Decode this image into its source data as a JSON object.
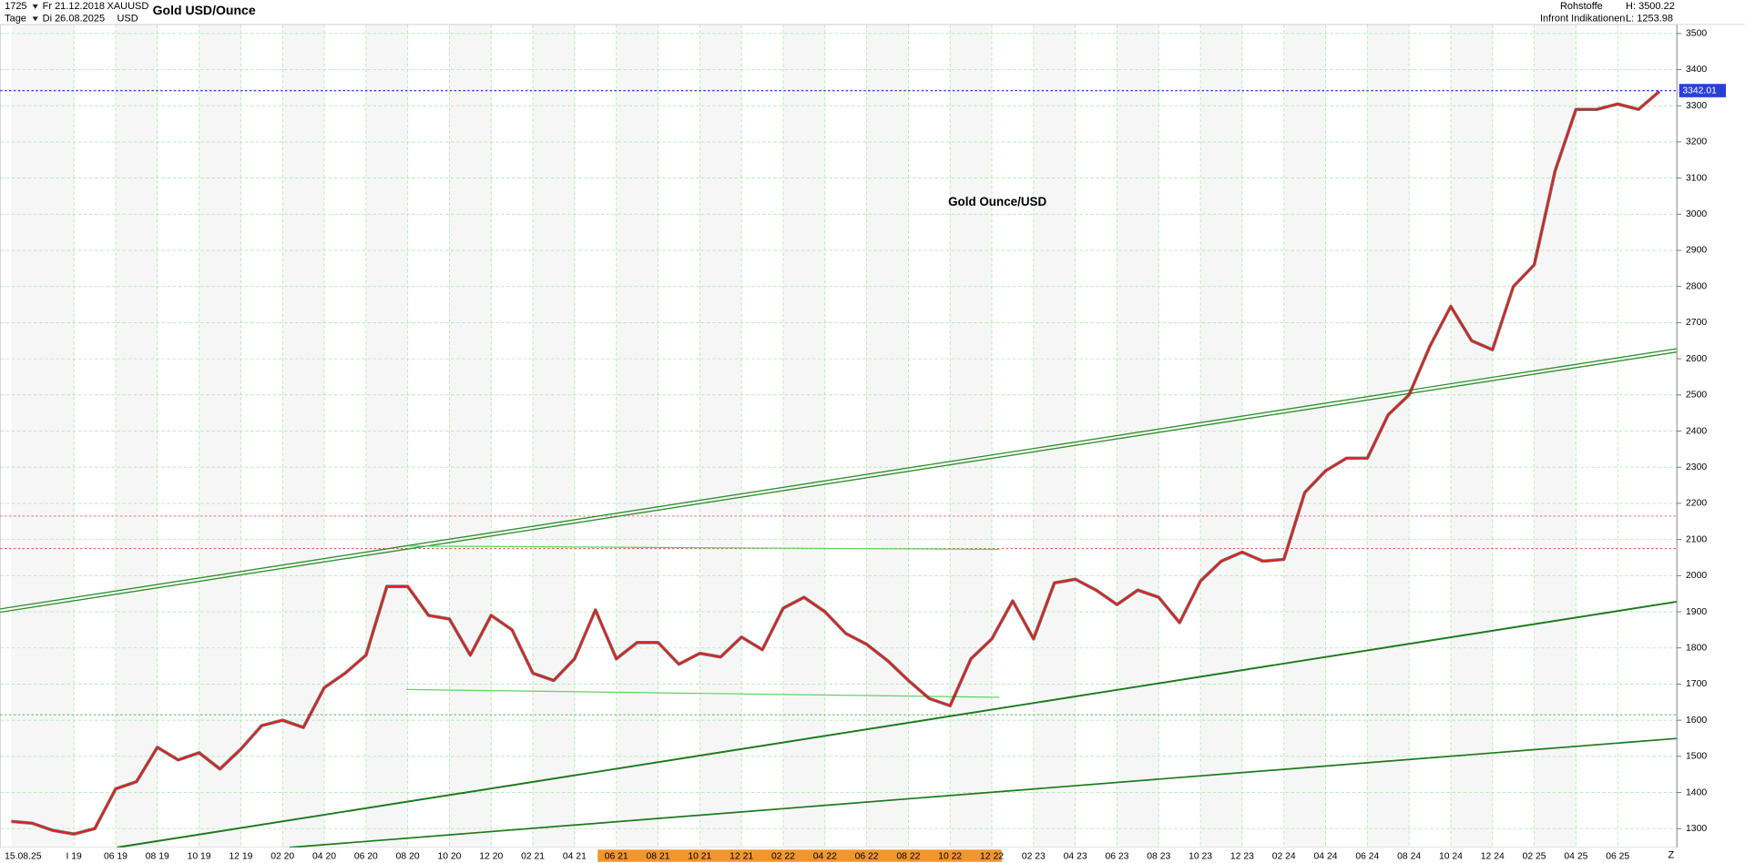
{
  "header": {
    "count": "1725",
    "period": "Tage",
    "from": "Fr 21.12.2018",
    "to": "Di 26.08.2025",
    "symbol": "XAUUSD",
    "currency": "USD",
    "title": "Gold USD/Ounce",
    "group": "Rohstoffe",
    "source": "Infront Indikationen",
    "high": "H: 3500.22",
    "low": "L: 1253.98",
    "corner": "Z"
  },
  "chart_data": {
    "type": "line",
    "annotation": "Gold Ounce/USD",
    "color": "#e31b1b",
    "categories": [
      "15.08.25",
      null,
      null,
      "I 19",
      null,
      "06 19",
      null,
      "08 19",
      null,
      "10 19",
      null,
      "12 19",
      null,
      "02 20",
      null,
      "04 20",
      null,
      "06 20",
      null,
      "08 20",
      null,
      "10 20",
      null,
      "12 20",
      null,
      "02 21",
      null,
      "04 21",
      null,
      "06 21",
      null,
      "08 21",
      null,
      "10 21",
      null,
      "12 21",
      null,
      "02 22",
      null,
      "04 22",
      null,
      "06 22",
      null,
      "08 22",
      null,
      "10 22",
      null,
      "12 22",
      null,
      "02 23",
      null,
      "04 23",
      null,
      "06 23",
      null,
      "08 23",
      null,
      "10 23",
      null,
      "12 23",
      null,
      "02 24",
      null,
      "04 24",
      null,
      "06 24",
      null,
      "08 24",
      null,
      "10 24",
      null,
      "12 24",
      null,
      "02 25",
      null,
      "04 25",
      null,
      "06 25",
      null,
      null
    ],
    "values": [
      1320,
      1315,
      1295,
      1285,
      1300,
      1410,
      1430,
      1525,
      1490,
      1510,
      1465,
      1520,
      1585,
      1600,
      1580,
      1690,
      1730,
      1780,
      1970,
      1970,
      1890,
      1880,
      1780,
      1890,
      1850,
      1730,
      1710,
      1770,
      1905,
      1770,
      1815,
      1815,
      1755,
      1785,
      1775,
      1830,
      1795,
      1910,
      1940,
      1900,
      1840,
      1810,
      1765,
      1710,
      1660,
      1640,
      1770,
      1825,
      1930,
      1825,
      1980,
      1990,
      1960,
      1920,
      1960,
      1940,
      1870,
      1985,
      2040,
      2065,
      2040,
      2045,
      2230,
      2290,
      2325,
      2325,
      2445,
      2500,
      2635,
      2745,
      2650,
      2625,
      2800,
      2860,
      3120,
      3290,
      3290,
      3305,
      3290,
      3340
    ],
    "last_value": 3342.01,
    "reference_lines": [
      {
        "value": 2165,
        "color": "#e88a8a"
      },
      {
        "value": 2075,
        "color": "#e06060"
      },
      {
        "value": 1615,
        "color": "#60c060"
      }
    ],
    "ylim": [
      1248,
      3525
    ],
    "yticks": [
      1300,
      1400,
      1500,
      1600,
      1700,
      1800,
      1900,
      2000,
      2100,
      2200,
      2300,
      2400,
      2500,
      2600,
      2700,
      2800,
      2900,
      3000,
      3100,
      3200,
      3300,
      3400,
      3500
    ],
    "grid": true
  }
}
